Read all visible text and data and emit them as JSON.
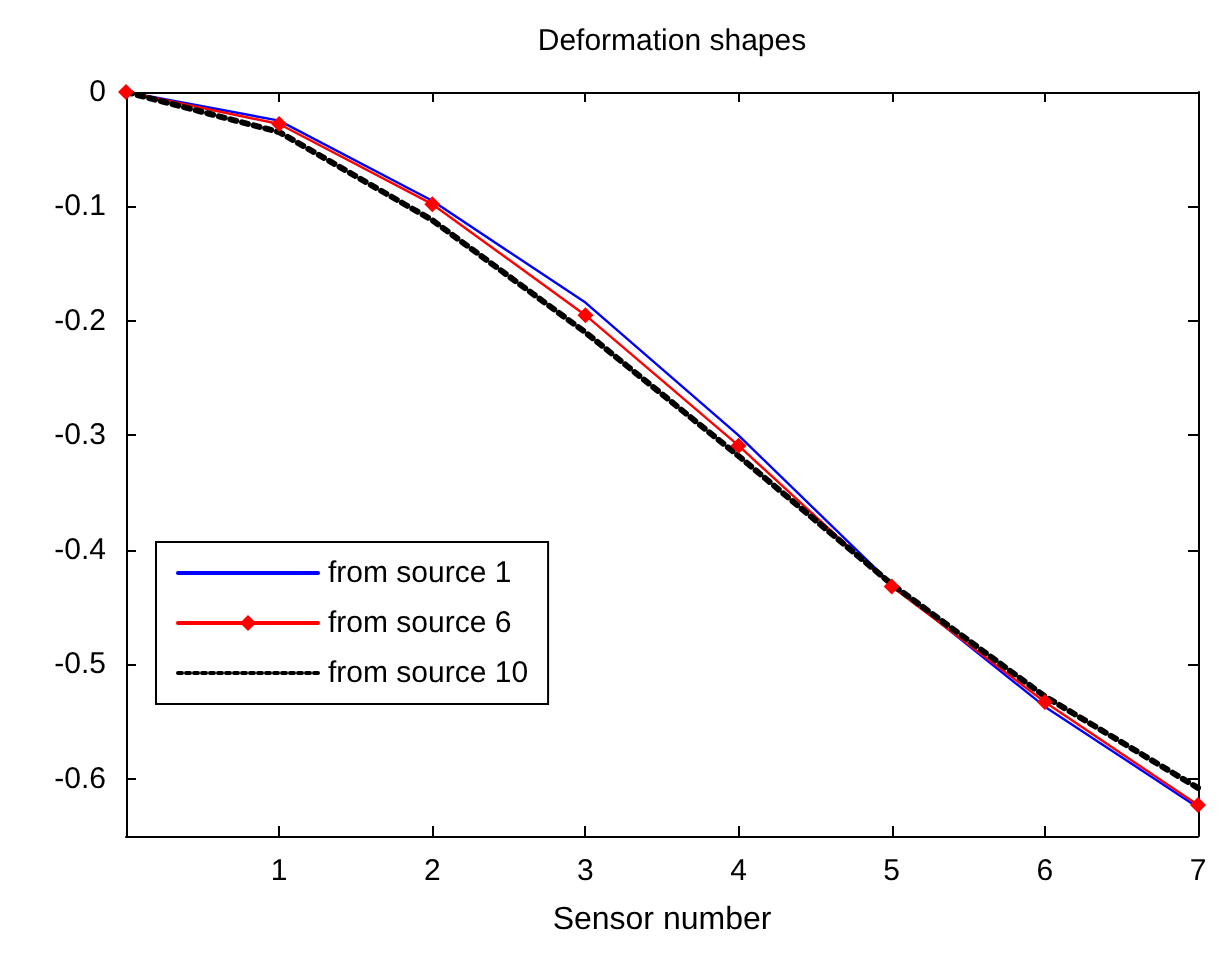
{
  "chart_data": {
    "type": "line",
    "title": "Deformation shapes",
    "xlabel": "Sensor number",
    "x": [
      0,
      1,
      2,
      3,
      4,
      5,
      6,
      7
    ],
    "xlim": [
      0,
      7
    ],
    "xticks": [
      1,
      2,
      3,
      4,
      5,
      6,
      7
    ],
    "ylim": [
      -0.65,
      0
    ],
    "yticks": [
      0,
      -0.1,
      -0.2,
      -0.3,
      -0.4,
      -0.5,
      -0.6
    ],
    "grid": false,
    "legend": "bottom left",
    "series": [
      {
        "name": "from source 1",
        "color": "#0000ff",
        "marker": "none",
        "line_style": "solid",
        "values": [
          0,
          -0.025,
          -0.095,
          -0.184,
          -0.3,
          -0.43,
          -0.537,
          -0.625
        ]
      },
      {
        "name": "from source 6",
        "color": "#ff0000",
        "marker": "diamond",
        "line_style": "solid",
        "values": [
          0,
          -0.028,
          -0.098,
          -0.195,
          -0.309,
          -0.432,
          -0.533,
          -0.623
        ]
      },
      {
        "name": "from source 10",
        "color": "#000000",
        "marker": "none",
        "line_style": "dotted",
        "values": [
          0,
          -0.035,
          -0.112,
          -0.21,
          -0.318,
          -0.43,
          -0.528,
          -0.608
        ]
      }
    ]
  }
}
